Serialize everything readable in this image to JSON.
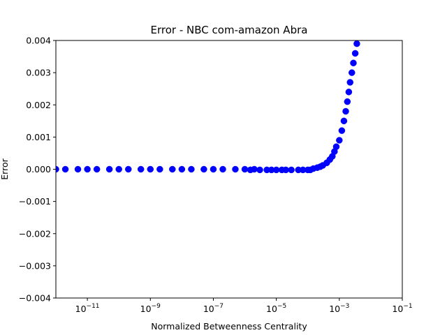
{
  "chart_data": {
    "type": "scatter",
    "title": "Error - NBC com-amazon Abra",
    "xlabel": "Normalized Betweenness Centrality",
    "ylabel": "Error",
    "x_scale": "log",
    "xlim": [
      1e-12,
      0.1
    ],
    "ylim": [
      -0.004,
      0.004
    ],
    "x_ticks": [
      {
        "value": 1e-11,
        "base": "10",
        "exp": "−11"
      },
      {
        "value": 1e-09,
        "base": "10",
        "exp": "−9"
      },
      {
        "value": 1e-07,
        "base": "10",
        "exp": "−7"
      },
      {
        "value": 1e-05,
        "base": "10",
        "exp": "−5"
      },
      {
        "value": 0.001,
        "base": "10",
        "exp": "−3"
      },
      {
        "value": 0.1,
        "base": "10",
        "exp": "−1"
      }
    ],
    "y_ticks": [
      {
        "value": 0.004,
        "label": "0.004"
      },
      {
        "value": 0.003,
        "label": "0.003"
      },
      {
        "value": 0.002,
        "label": "0.002"
      },
      {
        "value": 0.001,
        "label": "0.001"
      },
      {
        "value": 0.0,
        "label": "0.000"
      },
      {
        "value": -0.001,
        "label": "−0.001"
      },
      {
        "value": -0.002,
        "label": "−0.002"
      },
      {
        "value": -0.003,
        "label": "−0.003"
      },
      {
        "value": -0.004,
        "label": "−0.004"
      }
    ],
    "grid": false,
    "series": [
      {
        "color": "#0000ff",
        "points": [
          [
            1e-12,
            0.0
          ],
          [
            2e-12,
            0.0
          ],
          [
            5e-12,
            0.0
          ],
          [
            1e-11,
            0.0
          ],
          [
            2e-11,
            0.0
          ],
          [
            5e-11,
            0.0
          ],
          [
            1e-10,
            0.0
          ],
          [
            2e-10,
            0.0
          ],
          [
            5e-10,
            0.0
          ],
          [
            1e-09,
            0.0
          ],
          [
            2e-09,
            0.0
          ],
          [
            5e-09,
            0.0
          ],
          [
            1e-08,
            0.0
          ],
          [
            2e-08,
            0.0
          ],
          [
            5e-08,
            0.0
          ],
          [
            1e-07,
            0.0
          ],
          [
            2e-07,
            0.0
          ],
          [
            5e-07,
            0.0
          ],
          [
            1e-06,
            0.0
          ],
          [
            1.5e-06,
            -2e-05
          ],
          [
            2e-06,
            0.0
          ],
          [
            3e-06,
            -2e-05
          ],
          [
            5e-06,
            -2e-05
          ],
          [
            7e-06,
            -2e-05
          ],
          [
            1e-05,
            -2e-05
          ],
          [
            1.5e-05,
            -2e-05
          ],
          [
            2e-05,
            -2e-05
          ],
          [
            3e-05,
            -2e-05
          ],
          [
            5e-05,
            -2e-05
          ],
          [
            7e-05,
            -2e-05
          ],
          [
            0.0001,
            -2e-05
          ],
          [
            0.00012,
            -2e-05
          ],
          [
            0.00015,
            2e-05
          ],
          [
            0.0002,
            5e-05
          ],
          [
            0.00025,
            8e-05
          ],
          [
            0.0003,
            0.00012
          ],
          [
            0.0004,
            0.0002
          ],
          [
            0.0005,
            0.0003
          ],
          [
            0.0006,
            0.0004
          ],
          [
            0.0007,
            0.00055
          ],
          [
            0.0008,
            0.0007
          ],
          [
            0.001,
            0.0009
          ],
          [
            0.0012,
            0.0012
          ],
          [
            0.0014,
            0.0015
          ],
          [
            0.0016,
            0.0018
          ],
          [
            0.0018,
            0.0021
          ],
          [
            0.002,
            0.0024
          ],
          [
            0.0022,
            0.0027
          ],
          [
            0.0025,
            0.003
          ],
          [
            0.0028,
            0.0033
          ],
          [
            0.0032,
            0.0036
          ],
          [
            0.0036,
            0.0039
          ],
          [
            0.004,
            0.0042
          ]
        ]
      }
    ]
  }
}
